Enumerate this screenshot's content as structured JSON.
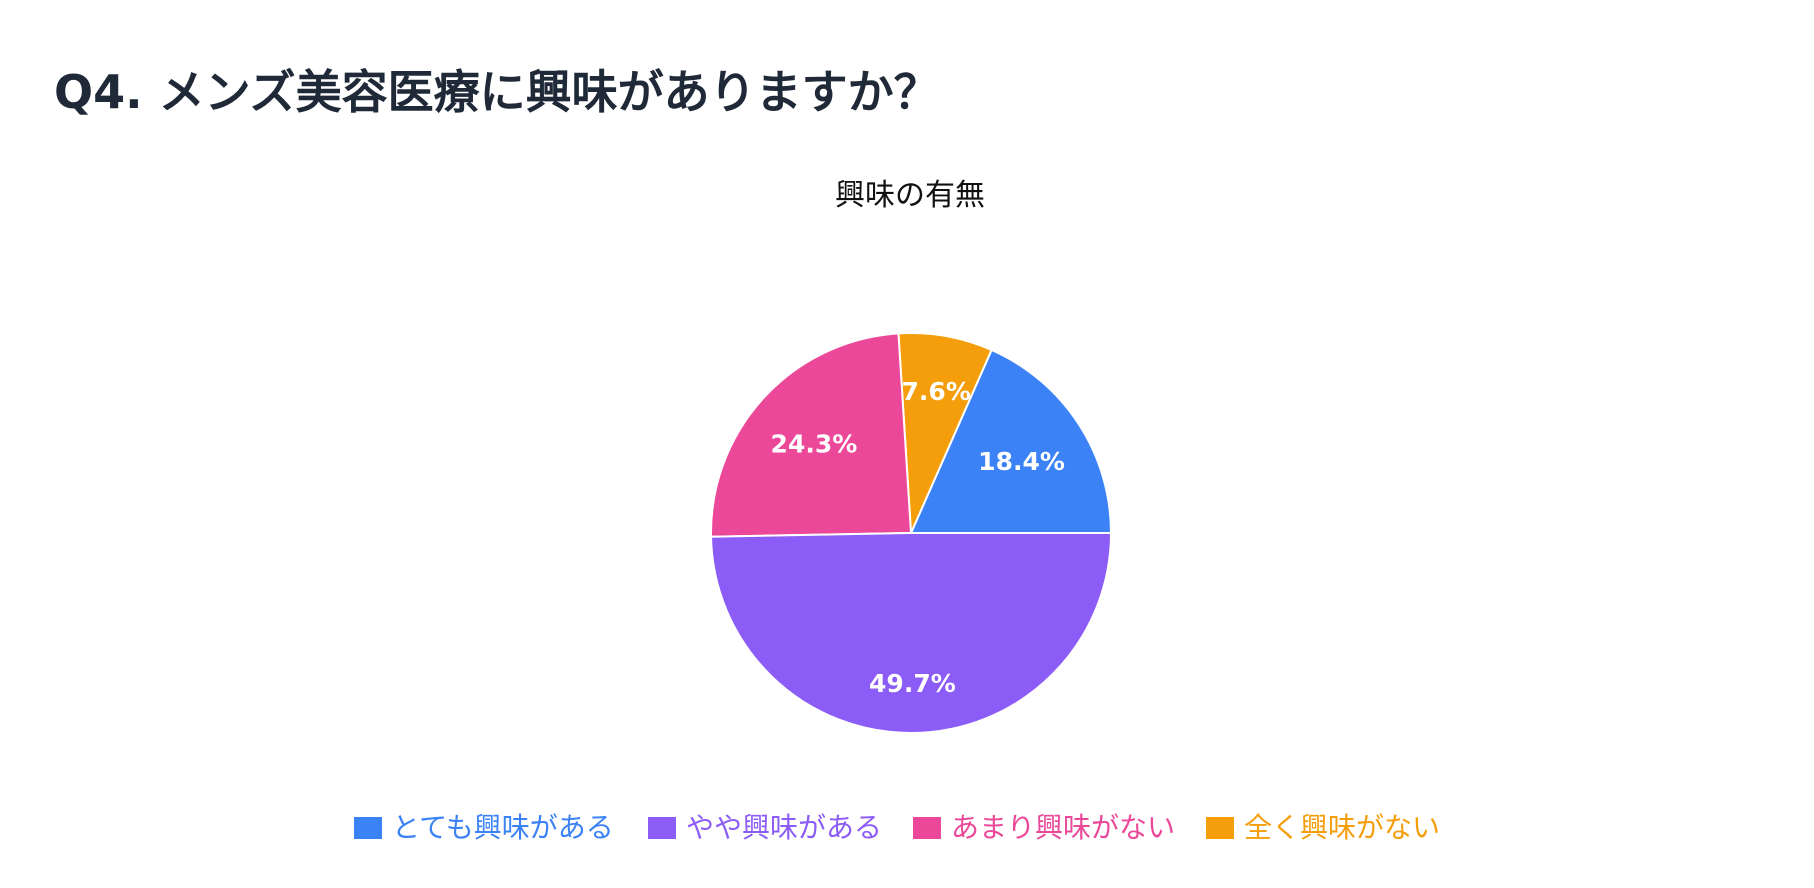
{
  "header": {
    "title": "Q4. メンズ美容医療に興味がありますか？"
  },
  "chart_data": {
    "type": "pie",
    "title": "興味の有無",
    "legend_position": "bottom",
    "slices": [
      {
        "label": "とても興味がある",
        "value": 18.4,
        "display": "18.4%",
        "color": "#3b82f6"
      },
      {
        "label": "全く興味がない",
        "value": 7.6,
        "display": "7.6%",
        "color": "#f59e0b"
      },
      {
        "label": "あまり興味がない",
        "value": 24.3,
        "display": "24.3%",
        "color": "#ec4899"
      },
      {
        "label": "やや興味がある",
        "value": 49.7,
        "display": "49.7%",
        "color": "#8b5cf6"
      }
    ],
    "legend": [
      {
        "label": "とても興味がある",
        "color": "#3b82f6"
      },
      {
        "label": "やや興味がある",
        "color": "#8b5cf6"
      },
      {
        "label": "あまり興味がない",
        "color": "#ec4899"
      },
      {
        "label": "全く興味がない",
        "color": "#f59e0b"
      }
    ]
  }
}
